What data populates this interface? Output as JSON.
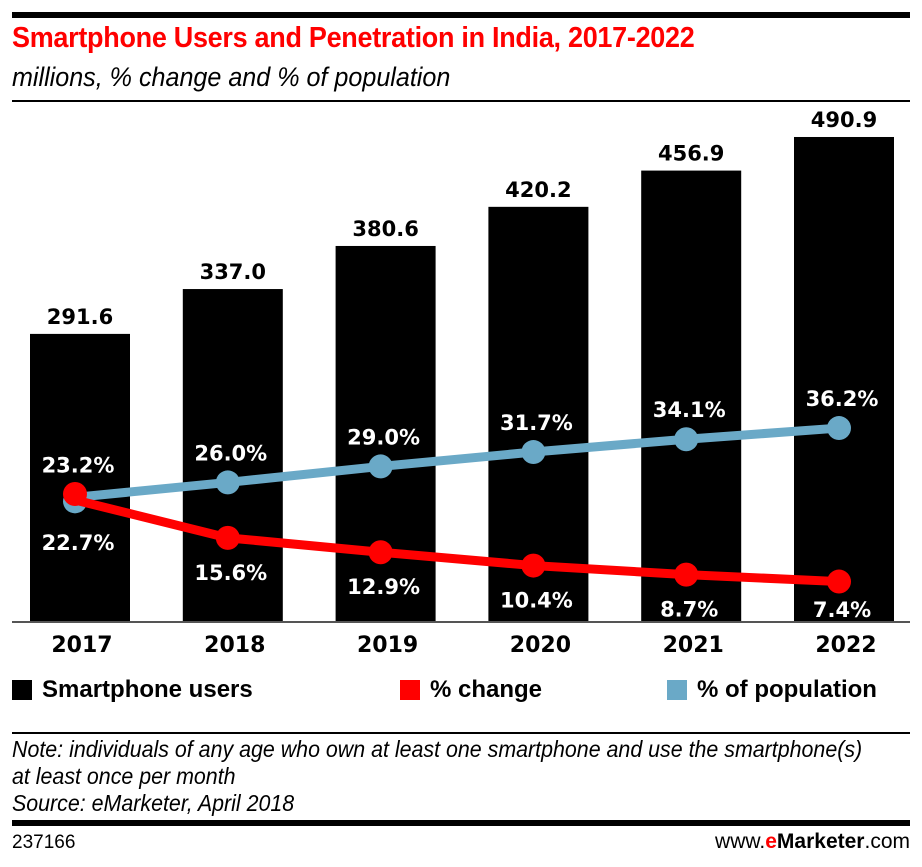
{
  "header": {
    "title": "Smartphone Users and Penetration in India, 2017-2022",
    "subtitle": "millions, % change and % of population"
  },
  "colors": {
    "title": "#ff0000",
    "bars": "#000000",
    "change": "#ff0000",
    "population": "#6aa9c7"
  },
  "chart_data": {
    "type": "bar",
    "title": "Smartphone Users and Penetration in India, 2017-2022",
    "subtitle": "millions, % change and % of population",
    "categories": [
      "2017",
      "2018",
      "2019",
      "2020",
      "2021",
      "2022"
    ],
    "series": [
      {
        "name": "Smartphone users",
        "type": "bar",
        "values": [
          291.6,
          337.0,
          380.6,
          420.2,
          456.9,
          490.9
        ],
        "labels": [
          "291.6",
          "337.0",
          "380.6",
          "420.2",
          "456.9",
          "490.9"
        ]
      },
      {
        "name": "% change",
        "type": "line",
        "values": [
          22.7,
          15.6,
          12.9,
          10.4,
          8.7,
          7.4
        ],
        "labels": [
          "22.7%",
          "15.6%",
          "12.9%",
          "10.4%",
          "8.7%",
          "7.4%"
        ]
      },
      {
        "name": "% of population",
        "type": "line",
        "values": [
          23.2,
          26.0,
          29.0,
          31.7,
          34.1,
          36.2
        ],
        "labels": [
          "23.2%",
          "26.0%",
          "29.0%",
          "31.7%",
          "34.1%",
          "36.2%"
        ]
      }
    ],
    "xlabel": "",
    "ylabel": "",
    "grid": false,
    "legend": "bottom"
  },
  "legend": {
    "items": [
      {
        "label": "Smartphone users"
      },
      {
        "label": "% change"
      },
      {
        "label": "% of population"
      }
    ]
  },
  "footer": {
    "note": "Note: individuals of any age who own at least one smartphone and use the smartphone(s) at least once per month",
    "source": "Source: eMarketer, April 2018",
    "chart_id": "237166",
    "brand_prefix": "www.",
    "brand_e": "e",
    "brand_name": "Marketer",
    "brand_suffix": ".com"
  }
}
